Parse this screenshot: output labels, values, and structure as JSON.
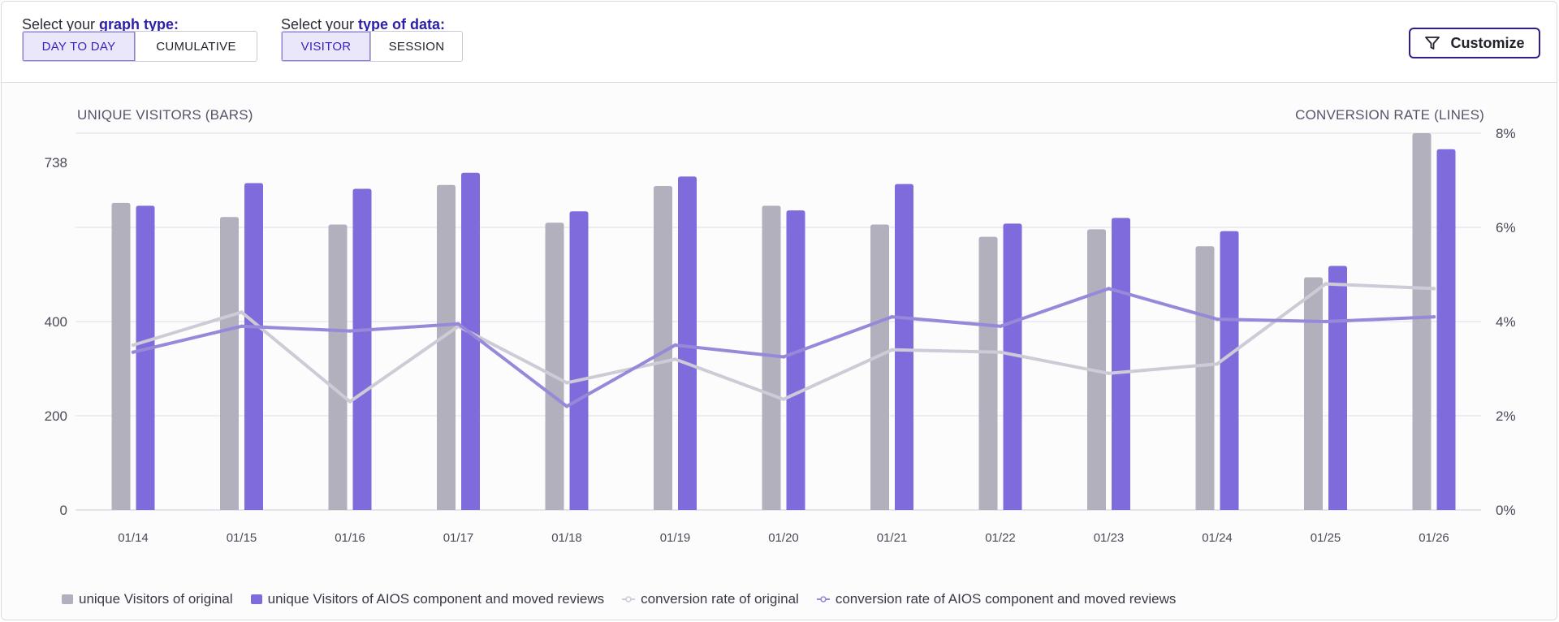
{
  "controls": {
    "graph_type": {
      "label_prefix": "Select your ",
      "label_emphasis": "graph type:",
      "options": [
        "DAY TO DAY",
        "CUMULATIVE"
      ],
      "selected": "DAY TO DAY"
    },
    "data_type": {
      "label_prefix": "Select your ",
      "label_emphasis": "type of data:",
      "options": [
        "VISITOR",
        "SESSION"
      ],
      "selected": "VISITOR"
    },
    "customize_label": "Customize",
    "customize_icon": "filter-icon"
  },
  "colors": {
    "original_bar": "#b1b0bc",
    "aios_bar": "#806bdc",
    "original_line": "#cdcbd6",
    "aios_line": "#9888da",
    "grid": "#dcdce8",
    "accent": "#2d1fa8"
  },
  "chart_data": {
    "type": "bar",
    "categories": [
      "01/14",
      "01/15",
      "01/16",
      "01/17",
      "01/18",
      "01/19",
      "01/20",
      "01/21",
      "01/22",
      "01/23",
      "01/24",
      "01/25",
      "01/26"
    ],
    "y_left": {
      "label": "UNIQUE VISITORS (BARS)",
      "range": [
        0,
        800
      ],
      "tick_labels": [
        "0",
        "200",
        "400",
        "738"
      ]
    },
    "y_right": {
      "label": "CONVERSION RATE (LINES)",
      "range": [
        0,
        8
      ],
      "tick_labels": [
        "0%",
        "2%",
        "4%",
        "6%",
        "8%"
      ]
    },
    "grid": true,
    "legend_position": "bottom",
    "series": [
      {
        "name": "unique Visitors of original",
        "kind": "bar",
        "axis": "left",
        "values": [
          652,
          622,
          606,
          690,
          610,
          688,
          646,
          606,
          580,
          596,
          560,
          494,
          800
        ]
      },
      {
        "name": "unique Visitors of AIOS component and moved reviews",
        "kind": "bar",
        "axis": "left",
        "values": [
          646,
          694,
          682,
          716,
          634,
          708,
          636,
          692,
          608,
          620,
          592,
          518,
          766
        ]
      },
      {
        "name": "conversion rate of original",
        "kind": "line",
        "axis": "right",
        "values": [
          3.5,
          4.2,
          2.3,
          3.9,
          2.7,
          3.2,
          2.35,
          3.4,
          3.35,
          2.9,
          3.1,
          4.8,
          4.7
        ]
      },
      {
        "name": "conversion rate of AIOS component and moved reviews",
        "kind": "line",
        "axis": "right",
        "values": [
          3.35,
          3.9,
          3.8,
          3.95,
          2.2,
          3.5,
          3.25,
          4.1,
          3.9,
          4.7,
          4.05,
          4.0,
          4.1
        ]
      }
    ]
  }
}
